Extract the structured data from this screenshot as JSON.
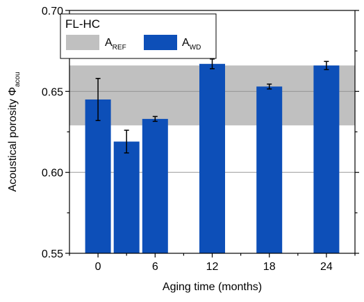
{
  "chart_data": {
    "type": "bar",
    "x": [
      0,
      3,
      6,
      12,
      18,
      24
    ],
    "values": [
      0.645,
      0.619,
      0.633,
      0.667,
      0.653,
      0.666
    ],
    "errors": [
      0.013,
      0.007,
      0.0015,
      0.003,
      0.0015,
      0.0025
    ],
    "x_ticks": [
      "0",
      "6",
      "12",
      "18",
      "24"
    ],
    "y_ticks": [
      "0.55",
      "0.60",
      "0.65",
      "0.70"
    ],
    "xlim": [
      -3,
      27
    ],
    "ylim": [
      0.55,
      0.7
    ],
    "xlabel": "Aging time (months)",
    "ylabel": {
      "main": "Acoustical porosity Φ",
      "sub": "acou"
    },
    "reference_band": {
      "low": 0.629,
      "high": 0.666,
      "color": "#c0c0c0"
    },
    "reference_line": 0.65,
    "grid": true,
    "legend": {
      "title": "FL-HC",
      "placement": "top-left",
      "items": [
        {
          "main": "A",
          "sub": "REF",
          "color": "#c0c0c0"
        },
        {
          "main": "A",
          "sub": "WD",
          "color": "#0d4fb8"
        }
      ]
    },
    "bar_color": "#0d4fb8"
  }
}
